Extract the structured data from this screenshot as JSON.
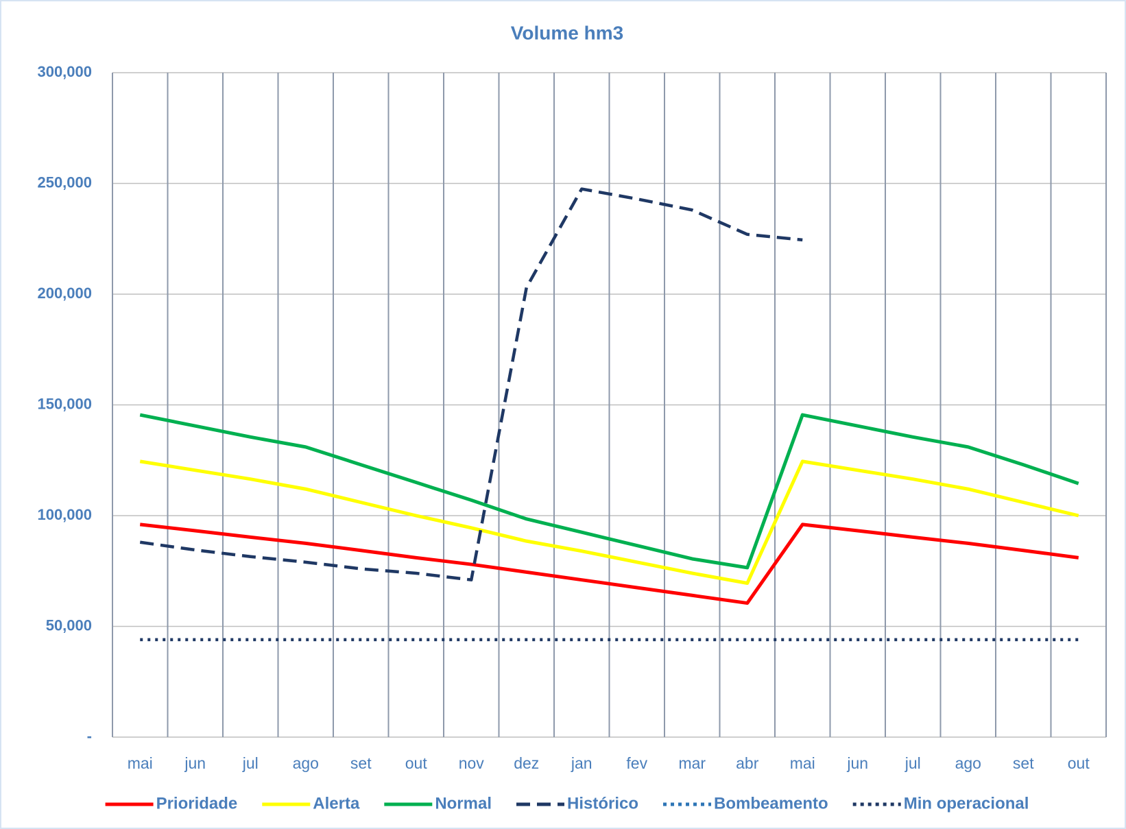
{
  "chart_data": {
    "type": "line",
    "title": "Volume hm3",
    "categories": [
      "mai",
      "jun",
      "jul",
      "ago",
      "set",
      "out",
      "nov",
      "dez",
      "jan",
      "fev",
      "mar",
      "abr",
      "mai",
      "jun",
      "jul",
      "ago",
      "set",
      "out"
    ],
    "ylim": [
      0,
      300000
    ],
    "yticks": [
      {
        "value": 0,
        "label": "-"
      },
      {
        "value": 50000,
        "label": "50,000"
      },
      {
        "value": 100000,
        "label": "100,000"
      },
      {
        "value": 150000,
        "label": "150,000"
      },
      {
        "value": 200000,
        "label": "200,000"
      },
      {
        "value": 250000,
        "label": "250,000"
      },
      {
        "value": 300000,
        "label": "300,000"
      }
    ],
    "grid": true,
    "legend": "bottom",
    "series": [
      {
        "name": "Prioridade",
        "color": "#ff0000",
        "style": "solid",
        "values": [
          96000,
          93200,
          90300,
          87500,
          84300,
          81000,
          78000,
          74500,
          71000,
          67500,
          64000,
          60500,
          96000,
          93200,
          90300,
          87500,
          84300,
          81000
        ]
      },
      {
        "name": "Alerta",
        "color": "#ffff00",
        "style": "solid",
        "values": [
          124500,
          120500,
          116500,
          112000,
          106000,
          100000,
          94500,
          88500,
          84000,
          79000,
          74000,
          69500,
          124500,
          120500,
          116500,
          112000,
          106000,
          100000
        ]
      },
      {
        "name": "Normal",
        "color": "#00b050",
        "style": "solid",
        "values": [
          145500,
          140500,
          135500,
          131000,
          123000,
          115000,
          107000,
          98500,
          92500,
          86500,
          80500,
          76500,
          145500,
          140500,
          135500,
          131000,
          123000,
          114500
        ]
      },
      {
        "name": "Histórico",
        "color": "#1f3864",
        "style": "dashed",
        "values": [
          88000,
          84500,
          81500,
          79000,
          76000,
          74000,
          71000,
          203000,
          247500,
          243000,
          238000,
          227000,
          224500,
          null,
          null,
          null,
          null,
          null
        ]
      },
      {
        "name": "Bombeamento",
        "color": "#2e75b6",
        "style": "dotted",
        "values": [
          null,
          null,
          null,
          null,
          null,
          null,
          null,
          null,
          null,
          null,
          null,
          null,
          null,
          null,
          null,
          null,
          null,
          null
        ]
      },
      {
        "name": "Min operacional",
        "color": "#1f3864",
        "style": "dotted",
        "values": [
          44000,
          44000,
          44000,
          44000,
          44000,
          44000,
          44000,
          44000,
          44000,
          44000,
          44000,
          44000,
          44000,
          44000,
          44000,
          44000,
          44000,
          44000
        ]
      }
    ]
  }
}
